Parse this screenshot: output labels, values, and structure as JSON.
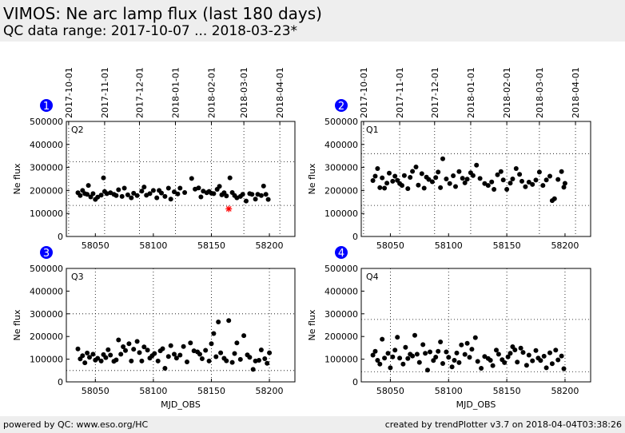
{
  "header": {
    "title": "VIMOS: Ne arc lamp flux (last 180 days)",
    "subtitle": "QC data range: 2017-10-07 ... 2018-03-23*"
  },
  "footer": {
    "left": "powered by QC: www.eso.org/HC",
    "right": "created by trendPlotter v3.7 on 2018-04-04T03:38:26"
  },
  "colors": {
    "points": "#000000",
    "outlier": "#ff0000",
    "badge": "#0000ff",
    "grid": "#000000"
  },
  "chart_data": [
    {
      "type": "scatter",
      "badge": "1",
      "quadrant": "Q2",
      "col": 0,
      "row": 0,
      "xlabel": "",
      "ylabel": "Ne flux",
      "xlim": [
        58025,
        58222
      ],
      "ylim": [
        0,
        500000
      ],
      "xticks": [
        58050,
        58100,
        58150,
        58200
      ],
      "yticks": [
        0,
        100000,
        200000,
        300000,
        400000,
        500000
      ],
      "date_ticks": [
        "2017-10-01",
        "2017-11-01",
        "2017-12-01",
        "2018-01-01",
        "2018-02-01",
        "2018-03-01",
        "2018-04-01"
      ],
      "date_tick_mjd": [
        58027,
        58058,
        58088,
        58119,
        58150,
        58178,
        58209
      ],
      "ref_lines": [
        325000,
        135000
      ],
      "center": 190000,
      "spread": 42000,
      "outliers": [
        {
          "x": 58165,
          "y": 120000
        }
      ],
      "x": [
        58035,
        58037,
        58039,
        58041,
        58043,
        58044,
        58046,
        58048,
        58050,
        58052,
        58055,
        58057,
        58058,
        58060,
        58063,
        58066,
        58068,
        58070,
        58073,
        58075,
        58078,
        58081,
        58083,
        58086,
        58090,
        58092,
        58094,
        58097,
        58100,
        58103,
        58105,
        58107,
        58110,
        58113,
        58115,
        58118,
        58121,
        58123,
        58127,
        58133,
        58136,
        58139,
        58141,
        58143,
        58146,
        58148,
        58150,
        58152,
        58155,
        58157,
        58159,
        58161,
        58163,
        58166,
        58168,
        58170,
        58172,
        58175,
        58177,
        58180,
        58183,
        58185,
        58188,
        58190,
        58193,
        58195,
        58197,
        58199
      ],
      "y": [
        190000,
        178000,
        200000,
        186000,
        183000,
        222000,
        172000,
        186000,
        161000,
        171000,
        180000,
        255000,
        195000,
        186000,
        190000,
        183000,
        178000,
        203000,
        174000,
        210000,
        181000,
        168000,
        188000,
        178000,
        197000,
        215000,
        179000,
        186000,
        200000,
        168000,
        200000,
        189000,
        174000,
        210000,
        162000,
        194000,
        185000,
        210000,
        191000,
        252000,
        206000,
        211000,
        172000,
        197000,
        190000,
        196000,
        188000,
        186000,
        205000,
        218000,
        181000,
        190000,
        176000,
        255000,
        191000,
        178000,
        168000,
        174000,
        183000,
        154000,
        186000,
        183000,
        162000,
        183000,
        178000,
        219000,
        183000,
        161000
      ]
    },
    {
      "type": "scatter",
      "badge": "2",
      "quadrant": "Q1",
      "col": 1,
      "row": 0,
      "xlabel": "",
      "ylabel": "Ne flux",
      "xlim": [
        58025,
        58222
      ],
      "ylim": [
        0,
        500000
      ],
      "xticks": [
        58050,
        58100,
        58150,
        58200
      ],
      "yticks": [
        0,
        100000,
        200000,
        300000,
        400000,
        500000
      ],
      "date_ticks": [
        "2017-10-01",
        "2017-11-01",
        "2017-12-01",
        "2018-01-01",
        "2018-02-01",
        "2018-03-01",
        "2018-04-01"
      ],
      "date_tick_mjd": [
        58027,
        58058,
        58088,
        58119,
        58150,
        58178,
        58209
      ],
      "ref_lines": [
        360000,
        135000
      ],
      "center": 245000,
      "spread": 50000,
      "outliers": [],
      "x": [
        58035,
        58037,
        58039,
        58041,
        58043,
        58045,
        58047,
        58049,
        58052,
        58054,
        58056,
        58058,
        58060,
        58062,
        58065,
        58067,
        58069,
        58072,
        58074,
        58077,
        58079,
        58081,
        58083,
        58086,
        58089,
        58091,
        58093,
        58095,
        58098,
        58101,
        58104,
        58106,
        58109,
        58112,
        58114,
        58116,
        58119,
        58121,
        58124,
        58127,
        58131,
        58134,
        58137,
        58139,
        58142,
        58145,
        58147,
        58150,
        58153,
        58155,
        58158,
        58161,
        58163,
        58166,
        58169,
        58172,
        58175,
        58178,
        58181,
        58184,
        58187,
        58189,
        58191,
        58194,
        58197,
        58199,
        58200
      ],
      "y": [
        243000,
        262000,
        295000,
        212000,
        255000,
        210000,
        232000,
        275000,
        240000,
        262000,
        244000,
        230000,
        222000,
        265000,
        208000,
        257000,
        283000,
        302000,
        223000,
        273000,
        210000,
        258000,
        248000,
        238000,
        256000,
        280000,
        212000,
        338000,
        250000,
        230000,
        264000,
        217000,
        282000,
        253000,
        233000,
        249000,
        277000,
        265000,
        310000,
        252000,
        230000,
        222000,
        237000,
        205000,
        268000,
        282000,
        246000,
        205000,
        232000,
        250000,
        295000,
        270000,
        240000,
        216000,
        236000,
        226000,
        245000,
        280000,
        222000,
        246000,
        262000,
        156000,
        164000,
        248000,
        282000,
        214000,
        231000
      ]
    },
    {
      "type": "scatter",
      "badge": "3",
      "quadrant": "Q3",
      "col": 0,
      "row": 1,
      "xlabel": "MJD_OBS",
      "ylabel": "Ne flux",
      "xlim": [
        58025,
        58222
      ],
      "ylim": [
        0,
        500000
      ],
      "xticks": [
        58050,
        58100,
        58150,
        58200
      ],
      "yticks": [
        0,
        100000,
        200000,
        300000,
        400000,
        500000
      ],
      "date_ticks": [],
      "date_tick_mjd": [],
      "ref_lines": [
        300000,
        50000
      ],
      "center": 120000,
      "spread": 50000,
      "outliers": [],
      "x": [
        58035,
        58037,
        58039,
        58041,
        58043,
        58045,
        58048,
        58050,
        58052,
        58055,
        58057,
        58059,
        58061,
        58063,
        58066,
        58068,
        58070,
        58072,
        58074,
        58076,
        58079,
        58081,
        58083,
        58086,
        58088,
        58090,
        58092,
        58095,
        58097,
        58099,
        58101,
        58104,
        58106,
        58108,
        58110,
        58113,
        58115,
        58118,
        58120,
        58123,
        58126,
        58129,
        58132,
        58135,
        58138,
        58140,
        58142,
        58145,
        58148,
        58150,
        58152,
        58154,
        58156,
        58158,
        58161,
        58163,
        58165,
        58168,
        58170,
        58172,
        58175,
        58178,
        58181,
        58183,
        58186,
        58188,
        58191,
        58193,
        58196,
        58198,
        58200
      ],
      "y": [
        145000,
        101000,
        115000,
        84000,
        127000,
        108000,
        122000,
        96000,
        104000,
        92000,
        120000,
        107000,
        142000,
        118000,
        91000,
        97000,
        185000,
        122000,
        155000,
        138000,
        168000,
        92000,
        144000,
        178000,
        129000,
        92000,
        154000,
        140000,
        105000,
        115000,
        125000,
        92000,
        137000,
        146000,
        60000,
        112000,
        160000,
        122000,
        105000,
        118000,
        156000,
        88000,
        172000,
        137000,
        132000,
        122000,
        102000,
        139000,
        92000,
        168000,
        213000,
        111000,
        264000,
        128000,
        104000,
        93000,
        270000,
        86000,
        125000,
        172000,
        99000,
        204000,
        119000,
        108000,
        55000,
        92000,
        95000,
        141000,
        102000,
        82000,
        128000
      ]
    },
    {
      "type": "scatter",
      "badge": "4",
      "quadrant": "Q4",
      "col": 1,
      "row": 1,
      "xlabel": "MJD_OBS",
      "ylabel": "Ne flux",
      "xlim": [
        58025,
        58222
      ],
      "ylim": [
        0,
        500000
      ],
      "xticks": [
        58050,
        58100,
        58150,
        58200
      ],
      "yticks": [
        0,
        100000,
        200000,
        300000,
        400000,
        500000
      ],
      "date_ticks": [],
      "date_tick_mjd": [],
      "ref_lines": [
        275000,
        45000
      ],
      "center": 110000,
      "spread": 48000,
      "outliers": [],
      "x": [
        58035,
        58037,
        58039,
        58041,
        58043,
        58045,
        58048,
        58050,
        58052,
        58054,
        58056,
        58058,
        58061,
        58063,
        58065,
        58067,
        58069,
        58071,
        58073,
        58075,
        58078,
        58080,
        58082,
        58084,
        58087,
        58089,
        58091,
        58093,
        58095,
        58098,
        58100,
        58103,
        58105,
        58107,
        58109,
        58111,
        58114,
        58116,
        58118,
        58120,
        58123,
        58125,
        58128,
        58131,
        58134,
        58136,
        58138,
        58141,
        58143,
        58146,
        58148,
        58151,
        58153,
        58155,
        58157,
        58159,
        58162,
        58164,
        58167,
        58169,
        58172,
        58175,
        58177,
        58179,
        58182,
        58184,
        58187,
        58189,
        58192,
        58194,
        58197,
        58199
      ],
      "y": [
        118000,
        135000,
        95000,
        78000,
        188000,
        105000,
        126000,
        62000,
        110000,
        140000,
        197000,
        105000,
        78000,
        152000,
        103000,
        122000,
        114000,
        205000,
        122000,
        86000,
        164000,
        126000,
        52000,
        132000,
        94000,
        109000,
        135000,
        176000,
        81000,
        132000,
        108000,
        66000,
        95000,
        127000,
        85000,
        163000,
        121000,
        170000,
        108000,
        144000,
        195000,
        90000,
        60000,
        112000,
        103000,
        95000,
        72000,
        140000,
        122000,
        98000,
        85000,
        110000,
        126000,
        155000,
        141000,
        87000,
        149000,
        130000,
        73000,
        118000,
        93000,
        138000,
        105000,
        94000,
        113000,
        62000,
        128000,
        80000,
        140000,
        97000,
        114000,
        58000
      ]
    }
  ]
}
